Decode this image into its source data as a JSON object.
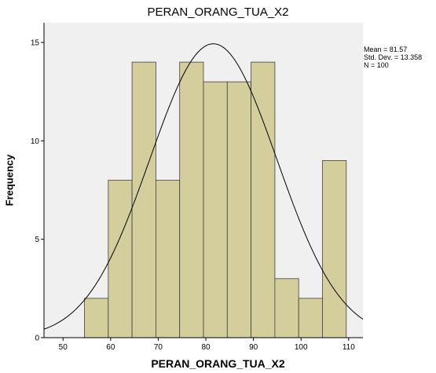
{
  "chart_data": {
    "type": "bar",
    "title": "PERAN_ORANG_TUA_X2",
    "xlabel": "PERAN_ORANG_TUA_X2",
    "ylabel": "Frequency",
    "xlim": [
      46,
      113
    ],
    "ylim": [
      0,
      16
    ],
    "xticks": [
      "50",
      "60",
      "70",
      "80",
      "90",
      "100",
      "110"
    ],
    "yticks": [
      "0",
      "5",
      "10",
      "15"
    ],
    "bin_width": 5,
    "bins": [
      {
        "x0": 54.5,
        "value": 2
      },
      {
        "x0": 59.5,
        "value": 8
      },
      {
        "x0": 64.5,
        "value": 14
      },
      {
        "x0": 69.5,
        "value": 8
      },
      {
        "x0": 74.5,
        "value": 14
      },
      {
        "x0": 79.5,
        "value": 13
      },
      {
        "x0": 84.5,
        "value": 13
      },
      {
        "x0": 89.5,
        "value": 14
      },
      {
        "x0": 94.5,
        "value": 3
      },
      {
        "x0": 99.5,
        "value": 2
      },
      {
        "x0": 104.5,
        "value": 9
      }
    ],
    "normal_curve": {
      "mean": 81.57,
      "std": 13.358,
      "n": 100
    },
    "stats_text": [
      "Mean = 81.57",
      "Std. Dev. = 13.358",
      "N = 100"
    ],
    "grid": false,
    "colors": {
      "plot_bg": "#f0f0f0",
      "bar_fill": "#d3ce9c",
      "bar_stroke": "#404040",
      "curve": "#000000"
    }
  }
}
